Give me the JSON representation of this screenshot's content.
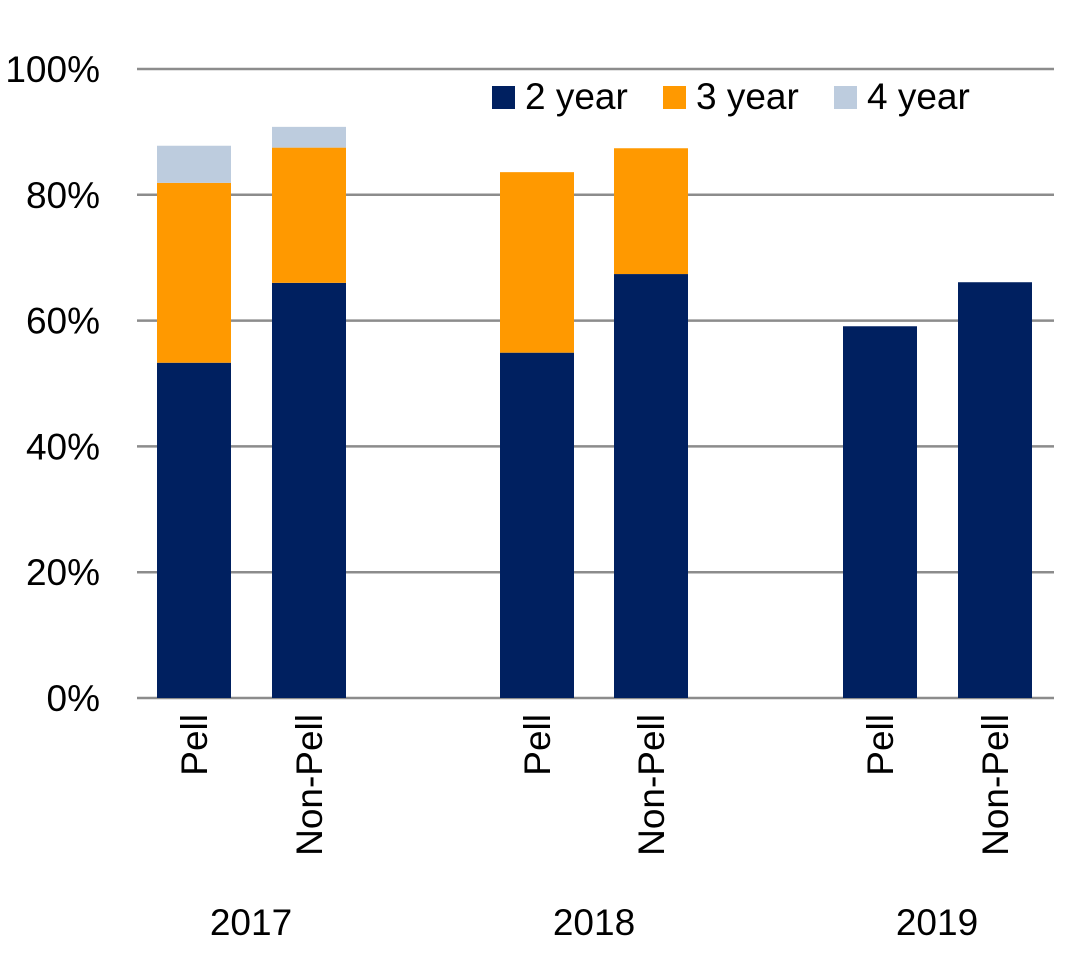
{
  "chart_data": {
    "type": "bar",
    "stacked": true,
    "ylim": [
      0,
      100
    ],
    "y_unit": "%",
    "y_ticks": [
      "0%",
      "20%",
      "40%",
      "60%",
      "80%",
      "100%"
    ],
    "grid": true,
    "legend_position": "top-right",
    "groups": [
      {
        "label": "2017",
        "categories": [
          "Pell",
          "Non-Pell"
        ]
      },
      {
        "label": "2018",
        "categories": [
          "Pell",
          "Non-Pell"
        ]
      },
      {
        "label": "2019",
        "categories": [
          "Pell",
          "Non-Pell"
        ]
      }
    ],
    "categories": [
      "2017 Pell",
      "2017 Non-Pell",
      "2018 Pell",
      "2018 Non-Pell",
      "2019 Pell",
      "2019 Non-Pell"
    ],
    "series": [
      {
        "name": "2 year",
        "color": "#002060",
        "values": [
          53.3,
          66.0,
          54.9,
          67.4,
          59.1,
          66.1
        ]
      },
      {
        "name": "3 year",
        "color": "#FF9900",
        "values": [
          28.6,
          21.5,
          28.7,
          20.0,
          null,
          null
        ]
      },
      {
        "name": "4 year",
        "color": "#BDCCDE",
        "values": [
          5.9,
          3.3,
          null,
          null,
          null,
          null
        ]
      }
    ]
  }
}
